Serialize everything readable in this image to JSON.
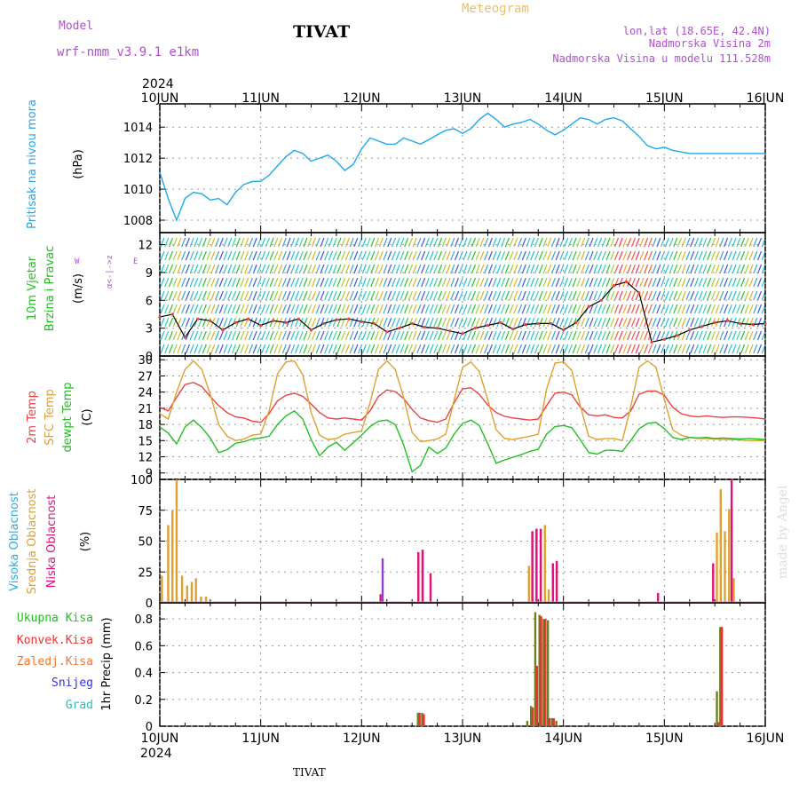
{
  "header": {
    "model_label": "Model",
    "model_name": "wrf-nmm_v3.9.1  e1km",
    "station": "TIVAT",
    "product": "Meteogram",
    "coords": "lon,lat (18.65E, 42.4N)",
    "elevation": "Nadmorska Visina 2m",
    "model_elevation": "Nadmorska Visina u modelu 111.528m",
    "credit": "made by Angel",
    "footer_station": "TIVAT"
  },
  "colors": {
    "pressure": "#1ea8f0",
    "t2m": "#f04040",
    "sfc_temp": "#e0a030",
    "dewpoint": "#20c020",
    "cloud_high": "#20b0f0",
    "cloud_mid": "#e0a030",
    "cloud_low": "#e01080",
    "rain_total": "#20c020",
    "rain_conv": "#f03030",
    "rain_fz": "#f07830",
    "snow": "#3030f0",
    "hail": "#20c0c0",
    "model_label": "#b050d0",
    "meteogram": "#e8c070"
  },
  "time_axis": {
    "year": "2024",
    "ticks": [
      "10JUN",
      "11JUN",
      "12JUN",
      "13JUN",
      "14JUN",
      "15JUN",
      "16JUN"
    ],
    "start": "2024-06-10 00:00",
    "end": "2024-06-16 00:00"
  },
  "chart_data": [
    {
      "type": "line",
      "panel": "pressure",
      "ylabel": [
        "Pritisak na nivou mora",
        "(hPa)"
      ],
      "ylim": [
        1007.2,
        1015.5
      ],
      "yticks": [
        1008,
        1010,
        1012,
        1014
      ],
      "grid": true,
      "series": [
        {
          "x": [
            0,
            2,
            4,
            6,
            8,
            10,
            12,
            14,
            16,
            18,
            20,
            22,
            24,
            26,
            28,
            30,
            32,
            34,
            36,
            38,
            40,
            42,
            44,
            46,
            48,
            50,
            52,
            54,
            56,
            58,
            60,
            62,
            64,
            66,
            68,
            70,
            72,
            74,
            76,
            78,
            80,
            82,
            84,
            86,
            88,
            90,
            92,
            94,
            96,
            98,
            100,
            102,
            104,
            106,
            108,
            110,
            112,
            114,
            116,
            118,
            120,
            122,
            124,
            126,
            128,
            130,
            132,
            134,
            136,
            138,
            140,
            142,
            144
          ],
          "values": [
            1011.1,
            1009.4,
            1008.0,
            1009.4,
            1009.8,
            1009.7,
            1009.3,
            1009.4,
            1009.0,
            1009.8,
            1010.3,
            1010.5,
            1010.5,
            1010.9,
            1011.5,
            1012.1,
            1012.5,
            1012.3,
            1011.8,
            1012.0,
            1012.2,
            1011.8,
            1011.2,
            1011.6,
            1012.6,
            1013.3,
            1013.1,
            1012.9,
            1012.9,
            1013.3,
            1013.1,
            1012.9,
            1013.2,
            1013.5,
            1013.8,
            1013.9,
            1013.6,
            1013.9,
            1014.5,
            1014.9,
            1014.5,
            1014.0,
            1014.2,
            1014.3,
            1014.5,
            1014.2,
            1013.8,
            1013.5,
            1013.8,
            1014.2,
            1014.6,
            1014.5,
            1014.2,
            1014.5,
            1014.6,
            1014.4,
            1013.9,
            1013.4,
            1012.8,
            1012.6,
            1012.7,
            1012.5,
            1012.4,
            1012.3,
            1012.3,
            1012.3,
            1012.3,
            1012.3,
            1012.3,
            1012.3,
            1012.3,
            1012.3,
            1012.3
          ]
        }
      ]
    },
    {
      "type": "line",
      "panel": "wind",
      "ylabel": [
        "10m Vjetar",
        "Brzina i Pravac",
        "(m/s)"
      ],
      "ylim": [
        0,
        13.3
      ],
      "yticks": [
        0,
        3,
        6,
        9,
        12
      ],
      "grid": true,
      "series": [
        {
          "x": [
            0,
            3,
            6,
            9,
            12,
            15,
            18,
            21,
            24,
            27,
            30,
            33,
            36,
            39,
            42,
            45,
            48,
            51,
            54,
            57,
            60,
            63,
            66,
            69,
            72,
            75,
            78,
            81,
            84,
            87,
            90,
            93,
            96,
            99,
            102,
            105,
            108,
            111,
            114,
            117,
            120,
            123,
            126,
            129,
            132,
            135,
            138,
            141,
            144
          ],
          "values": [
            4.2,
            4.5,
            2.0,
            4.0,
            3.8,
            2.8,
            3.6,
            4.0,
            3.3,
            3.8,
            3.6,
            4.0,
            2.8,
            3.5,
            3.9,
            4.0,
            3.7,
            3.5,
            2.6,
            3.0,
            3.5,
            3.1,
            3.0,
            2.7,
            2.4,
            3.0,
            3.3,
            3.6,
            2.9,
            3.4,
            3.5,
            3.5,
            2.8,
            3.6,
            5.3,
            6.0,
            7.6,
            8.0,
            6.8,
            1.5,
            1.8,
            2.2,
            2.8,
            3.2,
            3.6,
            3.8,
            3.5,
            3.4,
            3.5
          ]
        }
      ]
    },
    {
      "type": "line",
      "panel": "temperature",
      "ylabel": [
        "2m Temp",
        "SFC Temp",
        "dewpt Temp",
        "(C)"
      ],
      "ylim": [
        7.8,
        30.7
      ],
      "yticks": [
        9,
        12,
        15,
        18,
        21,
        24,
        27,
        30
      ],
      "grid": true,
      "series": [
        {
          "key": "t2m",
          "x": [
            0,
            2,
            4,
            6,
            8,
            10,
            12,
            14,
            16,
            18,
            20,
            22,
            24,
            26,
            28,
            30,
            32,
            34,
            36,
            38,
            40,
            42,
            44,
            46,
            48,
            50,
            52,
            54,
            56,
            58,
            60,
            62,
            64,
            66,
            68,
            70,
            72,
            74,
            76,
            78,
            80,
            82,
            84,
            86,
            88,
            90,
            92,
            94,
            96,
            98,
            100,
            102,
            104,
            106,
            108,
            110,
            112,
            114,
            116,
            118,
            120,
            122,
            124,
            126,
            128,
            130,
            132,
            134,
            136,
            138,
            140,
            142,
            144
          ],
          "values": [
            21.2,
            20.5,
            23.0,
            25.4,
            25.8,
            25.0,
            23.2,
            21.5,
            20.2,
            19.4,
            19.2,
            18.6,
            18.4,
            20.0,
            22.4,
            23.4,
            23.8,
            23.2,
            21.8,
            20.2,
            19.2,
            19.0,
            19.2,
            19.0,
            18.8,
            20.5,
            23.2,
            24.4,
            24.1,
            22.8,
            20.8,
            19.2,
            18.7,
            18.4,
            19.0,
            22.0,
            24.6,
            24.8,
            23.6,
            21.6,
            20.2,
            19.5,
            19.2,
            19.0,
            18.8,
            19.0,
            21.5,
            23.8,
            24.0,
            23.5,
            21.2,
            19.8,
            19.6,
            19.8,
            19.3,
            19.2,
            20.5,
            23.6,
            24.2,
            24.2,
            23.4,
            21.2,
            20.0,
            19.6,
            19.4,
            19.6,
            19.4,
            19.3,
            19.4,
            19.4,
            19.3,
            19.2,
            19.0
          ]
        },
        {
          "key": "sfc",
          "x": [
            0,
            2,
            4,
            6,
            8,
            10,
            12,
            14,
            16,
            18,
            20,
            22,
            24,
            26,
            28,
            30,
            32,
            34,
            36,
            38,
            40,
            42,
            44,
            46,
            48,
            50,
            52,
            54,
            56,
            58,
            60,
            62,
            64,
            66,
            68,
            70,
            72,
            74,
            76,
            78,
            80,
            82,
            84,
            86,
            88,
            90,
            92,
            94,
            96,
            98,
            100,
            102,
            104,
            106,
            108,
            110,
            112,
            114,
            116,
            118,
            120,
            122,
            124,
            126,
            128,
            130,
            132,
            134,
            136,
            138,
            140,
            142,
            144
          ],
          "values": [
            20.0,
            19.0,
            24.0,
            28.2,
            29.8,
            28.2,
            23.6,
            18.0,
            15.8,
            15.0,
            15.3,
            16.0,
            16.2,
            20.5,
            27.4,
            29.6,
            29.8,
            27.2,
            20.2,
            16.0,
            15.2,
            15.4,
            16.2,
            16.5,
            16.8,
            22.0,
            28.2,
            29.8,
            28.2,
            23.0,
            16.5,
            14.8,
            15.0,
            15.3,
            16.2,
            22.5,
            28.6,
            29.6,
            27.8,
            22.6,
            17.0,
            15.4,
            15.2,
            15.5,
            15.8,
            16.2,
            24.6,
            29.4,
            29.6,
            28.0,
            21.5,
            15.8,
            15.2,
            15.4,
            15.4,
            15.0,
            21.2,
            28.6,
            29.8,
            28.6,
            22.6,
            17.0,
            16.0,
            15.6,
            15.4,
            15.4,
            15.3,
            15.2,
            15.2,
            15.1,
            15.0,
            15.0,
            15.0
          ]
        },
        {
          "key": "dewpt",
          "x": [
            0,
            2,
            4,
            6,
            8,
            10,
            12,
            14,
            16,
            18,
            20,
            22,
            24,
            26,
            28,
            30,
            32,
            34,
            36,
            38,
            40,
            42,
            44,
            46,
            48,
            50,
            52,
            54,
            56,
            58,
            60,
            62,
            64,
            66,
            68,
            70,
            72,
            74,
            76,
            78,
            80,
            82,
            84,
            86,
            88,
            90,
            92,
            94,
            96,
            98,
            100,
            102,
            104,
            106,
            108,
            110,
            112,
            114,
            116,
            118,
            120,
            122,
            124,
            126,
            128,
            130,
            132,
            134,
            136,
            138,
            140,
            142,
            144
          ],
          "values": [
            17.5,
            16.4,
            14.4,
            17.5,
            18.8,
            17.4,
            15.5,
            12.8,
            13.3,
            14.5,
            14.8,
            15.3,
            15.5,
            15.8,
            18.0,
            19.6,
            20.5,
            19.0,
            15.2,
            12.2,
            13.8,
            14.7,
            13.2,
            14.6,
            16.0,
            17.6,
            18.6,
            18.8,
            18.0,
            14.2,
            9.2,
            10.4,
            13.8,
            12.6,
            13.6,
            16.2,
            18.2,
            18.8,
            17.8,
            14.4,
            10.8,
            11.4,
            11.9,
            12.4,
            13.0,
            13.4,
            16.2,
            17.6,
            17.8,
            17.4,
            15.2,
            12.8,
            12.5,
            13.2,
            13.2,
            13.0,
            15.0,
            17.2,
            18.2,
            18.4,
            17.2,
            15.6,
            15.2,
            15.6,
            15.5,
            15.6,
            15.4,
            15.5,
            15.4,
            15.3,
            15.4,
            15.3,
            15.2
          ]
        }
      ]
    },
    {
      "type": "bar",
      "panel": "cloud",
      "ylabel": [
        "Visoka Oblacnost",
        "Srednja Oblacnost",
        "Niska Oblacnost",
        "(%)"
      ],
      "ylim": [
        0,
        100
      ],
      "yticks": [
        0,
        25,
        50,
        75,
        100
      ],
      "grid": true,
      "series": [
        {
          "key": "mid",
          "x": [
            0.5,
            2,
            3,
            4,
            5.3,
            6.5,
            7.6,
            8.6,
            9.8,
            11.0,
            61.5,
            62.5,
            87.8,
            88.6,
            89.6,
            90.6,
            91.6,
            92.5,
            93.5,
            94.4,
            132.5,
            133.4,
            134.4,
            135.4,
            136.5
          ],
          "values": [
            22,
            63,
            75,
            100,
            22,
            14,
            17,
            20,
            5,
            5,
            41,
            43,
            30,
            58,
            60,
            60,
            63,
            11,
            32,
            33,
            57,
            92,
            58,
            76,
            20
          ]
        },
        {
          "key": "low",
          "x": [
            52.5,
            61.5,
            62.5,
            64.4,
            88.6,
            89.6,
            90.6,
            93.5,
            94.4,
            118.5,
            131.6,
            136.0
          ],
          "values": [
            7,
            41,
            43,
            24,
            58,
            60,
            60,
            32,
            34,
            8,
            32,
            100
          ]
        },
        {
          "key": "high",
          "x": [
            53.0
          ],
          "values": [
            36
          ]
        }
      ]
    },
    {
      "type": "bar",
      "panel": "precip",
      "ylabel": [
        "Ukupna Kisa",
        "Konvek.Kisa",
        "Zaledj.Kisa",
        "Snijeg",
        "Grad",
        "1hr Precip (mm)"
      ],
      "ylim": [
        0,
        0.92
      ],
      "yticks": [
        0,
        0.2,
        0.4,
        0.6,
        0.8
      ],
      "grid": true,
      "series": [
        {
          "key": "total",
          "x": [
            61.4,
            62.4,
            87.4,
            88.3,
            89.3,
            90.3,
            91.3,
            92.3,
            93.3,
            94.3,
            132.5,
            133.3
          ],
          "values": [
            0.1,
            0.1,
            0.04,
            0.15,
            0.85,
            0.83,
            0.8,
            0.79,
            0.06,
            0.04,
            0.26,
            0.74
          ]
        },
        {
          "key": "conv",
          "x": [
            61.8,
            62.8,
            88.7,
            89.7,
            90.7,
            91.7,
            92.7,
            93.7,
            132.9,
            133.7
          ],
          "values": [
            0.1,
            0.09,
            0.14,
            0.45,
            0.82,
            0.8,
            0.06,
            0.06,
            0.03,
            0.74
          ]
        }
      ]
    }
  ]
}
